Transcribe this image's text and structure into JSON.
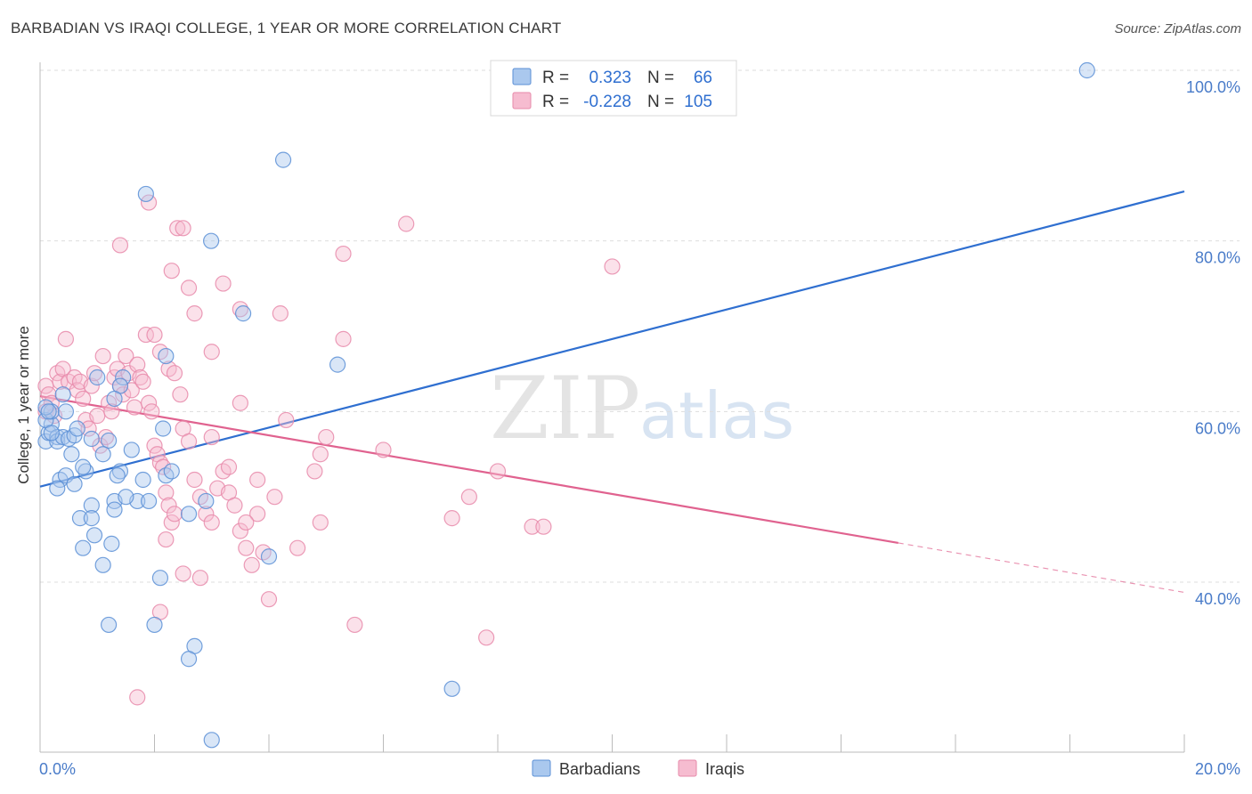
{
  "title": "BARBADIAN VS IRAQI COLLEGE, 1 YEAR OR MORE CORRELATION CHART",
  "source": "Source: ZipAtlas.com",
  "watermark": {
    "zip": "ZIP",
    "atlas": "atlas"
  },
  "colors": {
    "blue_fill": "#aac8ee",
    "blue_stroke": "#5b8fd6",
    "blue_line": "#2f6fd0",
    "pink_fill": "#f6bcd0",
    "pink_stroke": "#e78aaa",
    "pink_line": "#e0628f",
    "grid": "#dddddd",
    "axis_label": "#4a7cc9"
  },
  "legend": {
    "rows": [
      {
        "r_label": "R =",
        "r_value": "0.323",
        "n_label": "N =",
        "n_value": "66",
        "color": "blue"
      },
      {
        "r_label": "R =",
        "r_value": "-0.228",
        "n_label": "N =",
        "n_value": "105",
        "color": "pink"
      }
    ]
  },
  "bottom_legend": [
    {
      "label": "Barbadians",
      "color": "blue"
    },
    {
      "label": "Iraqis",
      "color": "pink"
    }
  ],
  "chart_data": {
    "type": "scatter",
    "title": "BARBADIAN VS IRAQI COLLEGE, 1 YEAR OR MORE CORRELATION CHART",
    "xlabel": "",
    "ylabel": "College, 1 year or more",
    "xlim": [
      0,
      20
    ],
    "ylim": [
      20,
      102
    ],
    "x_ticks": [
      0,
      2,
      4,
      6,
      8,
      10,
      12,
      14,
      16,
      18,
      20
    ],
    "x_tick_labels_shown": [
      "0.0%",
      "20.0%"
    ],
    "y_ticks": [
      40,
      60,
      80,
      100
    ],
    "y_tick_labels": [
      "40.0%",
      "60.0%",
      "80.0%",
      "100.0%"
    ],
    "grid": true,
    "legend_position": "top-center",
    "series": [
      {
        "name": "Barbadians",
        "color": "blue",
        "R": 0.323,
        "N": 66,
        "trend": {
          "x": [
            0,
            20
          ],
          "y": [
            51.2,
            85.8
          ]
        },
        "points": [
          [
            0.1,
            56.5
          ],
          [
            0.15,
            57.5
          ],
          [
            0.2,
            58.5
          ],
          [
            0.3,
            57
          ],
          [
            0.1,
            59
          ],
          [
            0.2,
            60
          ],
          [
            0.1,
            60.5
          ],
          [
            0.3,
            56.5
          ],
          [
            0.4,
            57
          ],
          [
            0.5,
            56.8
          ],
          [
            0.6,
            57.2
          ],
          [
            0.35,
            52
          ],
          [
            0.45,
            52.5
          ],
          [
            0.3,
            51
          ],
          [
            0.6,
            51.5
          ],
          [
            0.8,
            53
          ],
          [
            0.75,
            53.5
          ],
          [
            0.9,
            56.8
          ],
          [
            1.2,
            56.6
          ],
          [
            1.1,
            55
          ],
          [
            1.4,
            53
          ],
          [
            1.35,
            52.5
          ],
          [
            1.6,
            55.5
          ],
          [
            1.8,
            52
          ],
          [
            1.7,
            49.5
          ],
          [
            1.3,
            49.5
          ],
          [
            1.5,
            50
          ],
          [
            1.3,
            48.5
          ],
          [
            0.9,
            49
          ],
          [
            0.7,
            47.5
          ],
          [
            0.9,
            47.5
          ],
          [
            0.95,
            45.5
          ],
          [
            0.75,
            44
          ],
          [
            1.25,
            44.5
          ],
          [
            1.1,
            42
          ],
          [
            1.9,
            49.5
          ],
          [
            2.2,
            52.5
          ],
          [
            2.3,
            53
          ],
          [
            2.6,
            48
          ],
          [
            2.9,
            49.5
          ],
          [
            2.1,
            40.5
          ],
          [
            2.0,
            35
          ],
          [
            1.2,
            35
          ],
          [
            2.7,
            32.5
          ],
          [
            2.6,
            31
          ],
          [
            3.0,
            21.5
          ],
          [
            4.0,
            43
          ],
          [
            4.25,
            89.5
          ],
          [
            1.85,
            85.5
          ],
          [
            2.99,
            80
          ],
          [
            3.55,
            71.5
          ],
          [
            2.2,
            66.5
          ],
          [
            1.45,
            64
          ],
          [
            1.4,
            63
          ],
          [
            1.0,
            64
          ],
          [
            1.3,
            61.5
          ],
          [
            2.15,
            58
          ],
          [
            0.4,
            62
          ],
          [
            0.45,
            60
          ],
          [
            5.2,
            65.5
          ],
          [
            7.2,
            27.5
          ],
          [
            18.3,
            100
          ],
          [
            0.15,
            60
          ],
          [
            0.2,
            57.5
          ],
          [
            0.55,
            55
          ],
          [
            0.65,
            58
          ]
        ]
      },
      {
        "name": "Iraqis",
        "color": "pink",
        "R": -0.228,
        "N": 105,
        "trend": {
          "x": [
            0,
            15
          ],
          "y": [
            61.8,
            44.6
          ]
        },
        "trend_dashed": {
          "x": [
            15,
            20
          ],
          "y": [
            44.6,
            38.8
          ]
        },
        "points": [
          [
            0.1,
            63
          ],
          [
            0.15,
            62
          ],
          [
            0.2,
            61
          ],
          [
            0.1,
            60
          ],
          [
            0.25,
            59.5
          ],
          [
            0.3,
            64.5
          ],
          [
            0.35,
            63.5
          ],
          [
            0.4,
            65
          ],
          [
            0.5,
            63.5
          ],
          [
            0.45,
            68.5
          ],
          [
            0.6,
            64
          ],
          [
            0.65,
            62.5
          ],
          [
            0.7,
            63.5
          ],
          [
            0.75,
            61.5
          ],
          [
            0.8,
            59
          ],
          [
            0.85,
            58
          ],
          [
            0.9,
            63
          ],
          [
            0.95,
            64.5
          ],
          [
            1.0,
            59.5
          ],
          [
            1.05,
            56
          ],
          [
            1.1,
            66.5
          ],
          [
            1.15,
            57
          ],
          [
            1.2,
            61
          ],
          [
            1.25,
            60
          ],
          [
            1.3,
            64
          ],
          [
            1.35,
            65
          ],
          [
            1.4,
            63
          ],
          [
            1.45,
            62
          ],
          [
            1.5,
            66.5
          ],
          [
            1.55,
            64.5
          ],
          [
            1.6,
            62.5
          ],
          [
            1.65,
            60.5
          ],
          [
            1.7,
            65.5
          ],
          [
            1.75,
            64
          ],
          [
            1.8,
            63.5
          ],
          [
            1.85,
            69
          ],
          [
            1.9,
            61
          ],
          [
            1.95,
            60
          ],
          [
            2.0,
            56
          ],
          [
            2.05,
            55
          ],
          [
            2.1,
            54
          ],
          [
            2.15,
            53.5
          ],
          [
            2.2,
            50.5
          ],
          [
            2.25,
            49
          ],
          [
            2.3,
            47
          ],
          [
            2.35,
            48
          ],
          [
            2.0,
            69
          ],
          [
            2.1,
            67
          ],
          [
            2.25,
            65
          ],
          [
            2.35,
            64.5
          ],
          [
            2.45,
            62
          ],
          [
            2.5,
            58
          ],
          [
            2.6,
            56.5
          ],
          [
            2.7,
            52
          ],
          [
            2.8,
            50
          ],
          [
            2.9,
            48
          ],
          [
            3.0,
            47
          ],
          [
            3.1,
            51
          ],
          [
            3.2,
            53
          ],
          [
            3.3,
            50.5
          ],
          [
            3.4,
            49
          ],
          [
            3.5,
            46
          ],
          [
            3.6,
            44
          ],
          [
            3.7,
            42
          ],
          [
            1.4,
            79.5
          ],
          [
            1.9,
            84.5
          ],
          [
            2.4,
            81.5
          ],
          [
            2.5,
            81.5
          ],
          [
            2.3,
            76.5
          ],
          [
            2.6,
            74.5
          ],
          [
            2.7,
            71.5
          ],
          [
            3.2,
            75
          ],
          [
            3.5,
            72
          ],
          [
            4.2,
            71.5
          ],
          [
            5.3,
            78.5
          ],
          [
            6.4,
            82
          ],
          [
            3.0,
            67
          ],
          [
            3.5,
            61
          ],
          [
            4.3,
            59
          ],
          [
            4.9,
            55
          ],
          [
            5.0,
            57
          ],
          [
            4.8,
            53
          ],
          [
            5.3,
            68.5
          ],
          [
            6.0,
            55.5
          ],
          [
            7.2,
            47.5
          ],
          [
            7.5,
            50
          ],
          [
            8.0,
            53
          ],
          [
            8.6,
            46.5
          ],
          [
            8.8,
            46.5
          ],
          [
            10.0,
            77
          ],
          [
            3.8,
            48
          ],
          [
            3.9,
            43.5
          ],
          [
            4.5,
            44
          ],
          [
            4.0,
            38
          ],
          [
            5.5,
            35
          ],
          [
            7.8,
            33.5
          ],
          [
            1.7,
            26.5
          ],
          [
            2.1,
            36.5
          ],
          [
            2.5,
            41
          ],
          [
            2.2,
            45
          ],
          [
            2.8,
            40.5
          ],
          [
            4.9,
            47
          ],
          [
            3.0,
            57
          ],
          [
            3.3,
            53.5
          ],
          [
            3.8,
            52
          ],
          [
            4.1,
            50
          ],
          [
            3.6,
            47
          ]
        ]
      }
    ]
  }
}
